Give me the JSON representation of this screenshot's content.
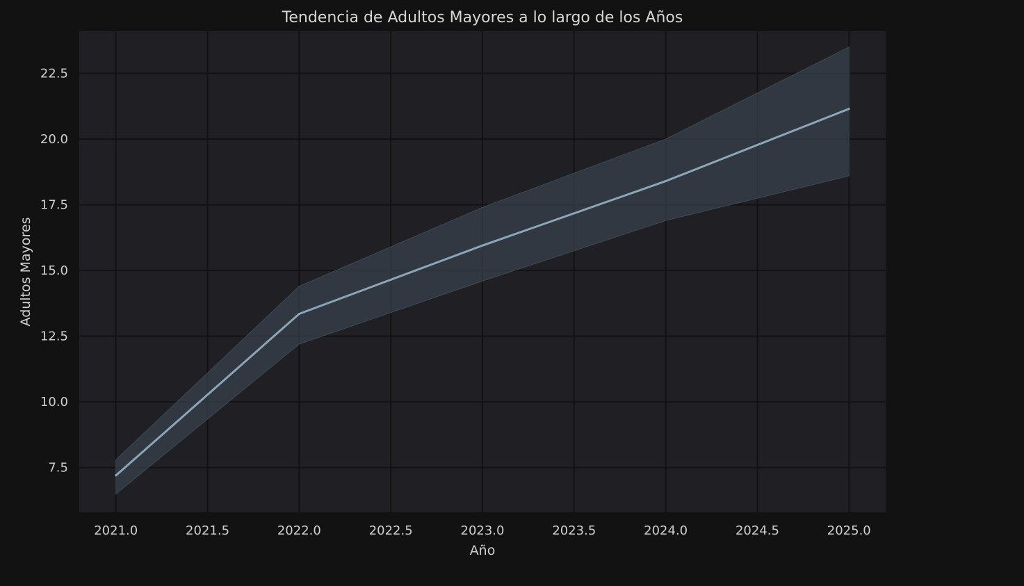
{
  "chart_data": {
    "type": "line",
    "title": "Tendencia de  Adultos Mayores a lo largo de los Años",
    "xlabel": "Año",
    "ylabel": "Adultos Mayores",
    "xlim": [
      2020.8,
      2025.2
    ],
    "ylim": [
      5.8,
      24.1
    ],
    "xticks": [
      "2021.0",
      "2021.5",
      "2022.0",
      "2022.5",
      "2023.0",
      "2023.5",
      "2024.0",
      "2024.5",
      "2025.0"
    ],
    "yticks": [
      "7.5",
      "10.0",
      "12.5",
      "15.0",
      "17.5",
      "20.0",
      "22.5"
    ],
    "grid": true,
    "x": [
      2021,
      2022,
      2023,
      2024,
      2025
    ],
    "series": [
      {
        "values": [
          7.2,
          13.35,
          15.95,
          18.4,
          21.15
        ],
        "ci_upper": [
          7.8,
          14.4,
          17.4,
          20.0,
          23.5
        ],
        "ci_lower": [
          6.5,
          12.2,
          14.6,
          16.9,
          18.6
        ]
      }
    ],
    "colors": {
      "background": "#121212",
      "plot_background": "#202024",
      "grid": "#121214",
      "line": "#8aa6b8",
      "band": "#3d4a55",
      "text": "#cfcfcf"
    }
  }
}
